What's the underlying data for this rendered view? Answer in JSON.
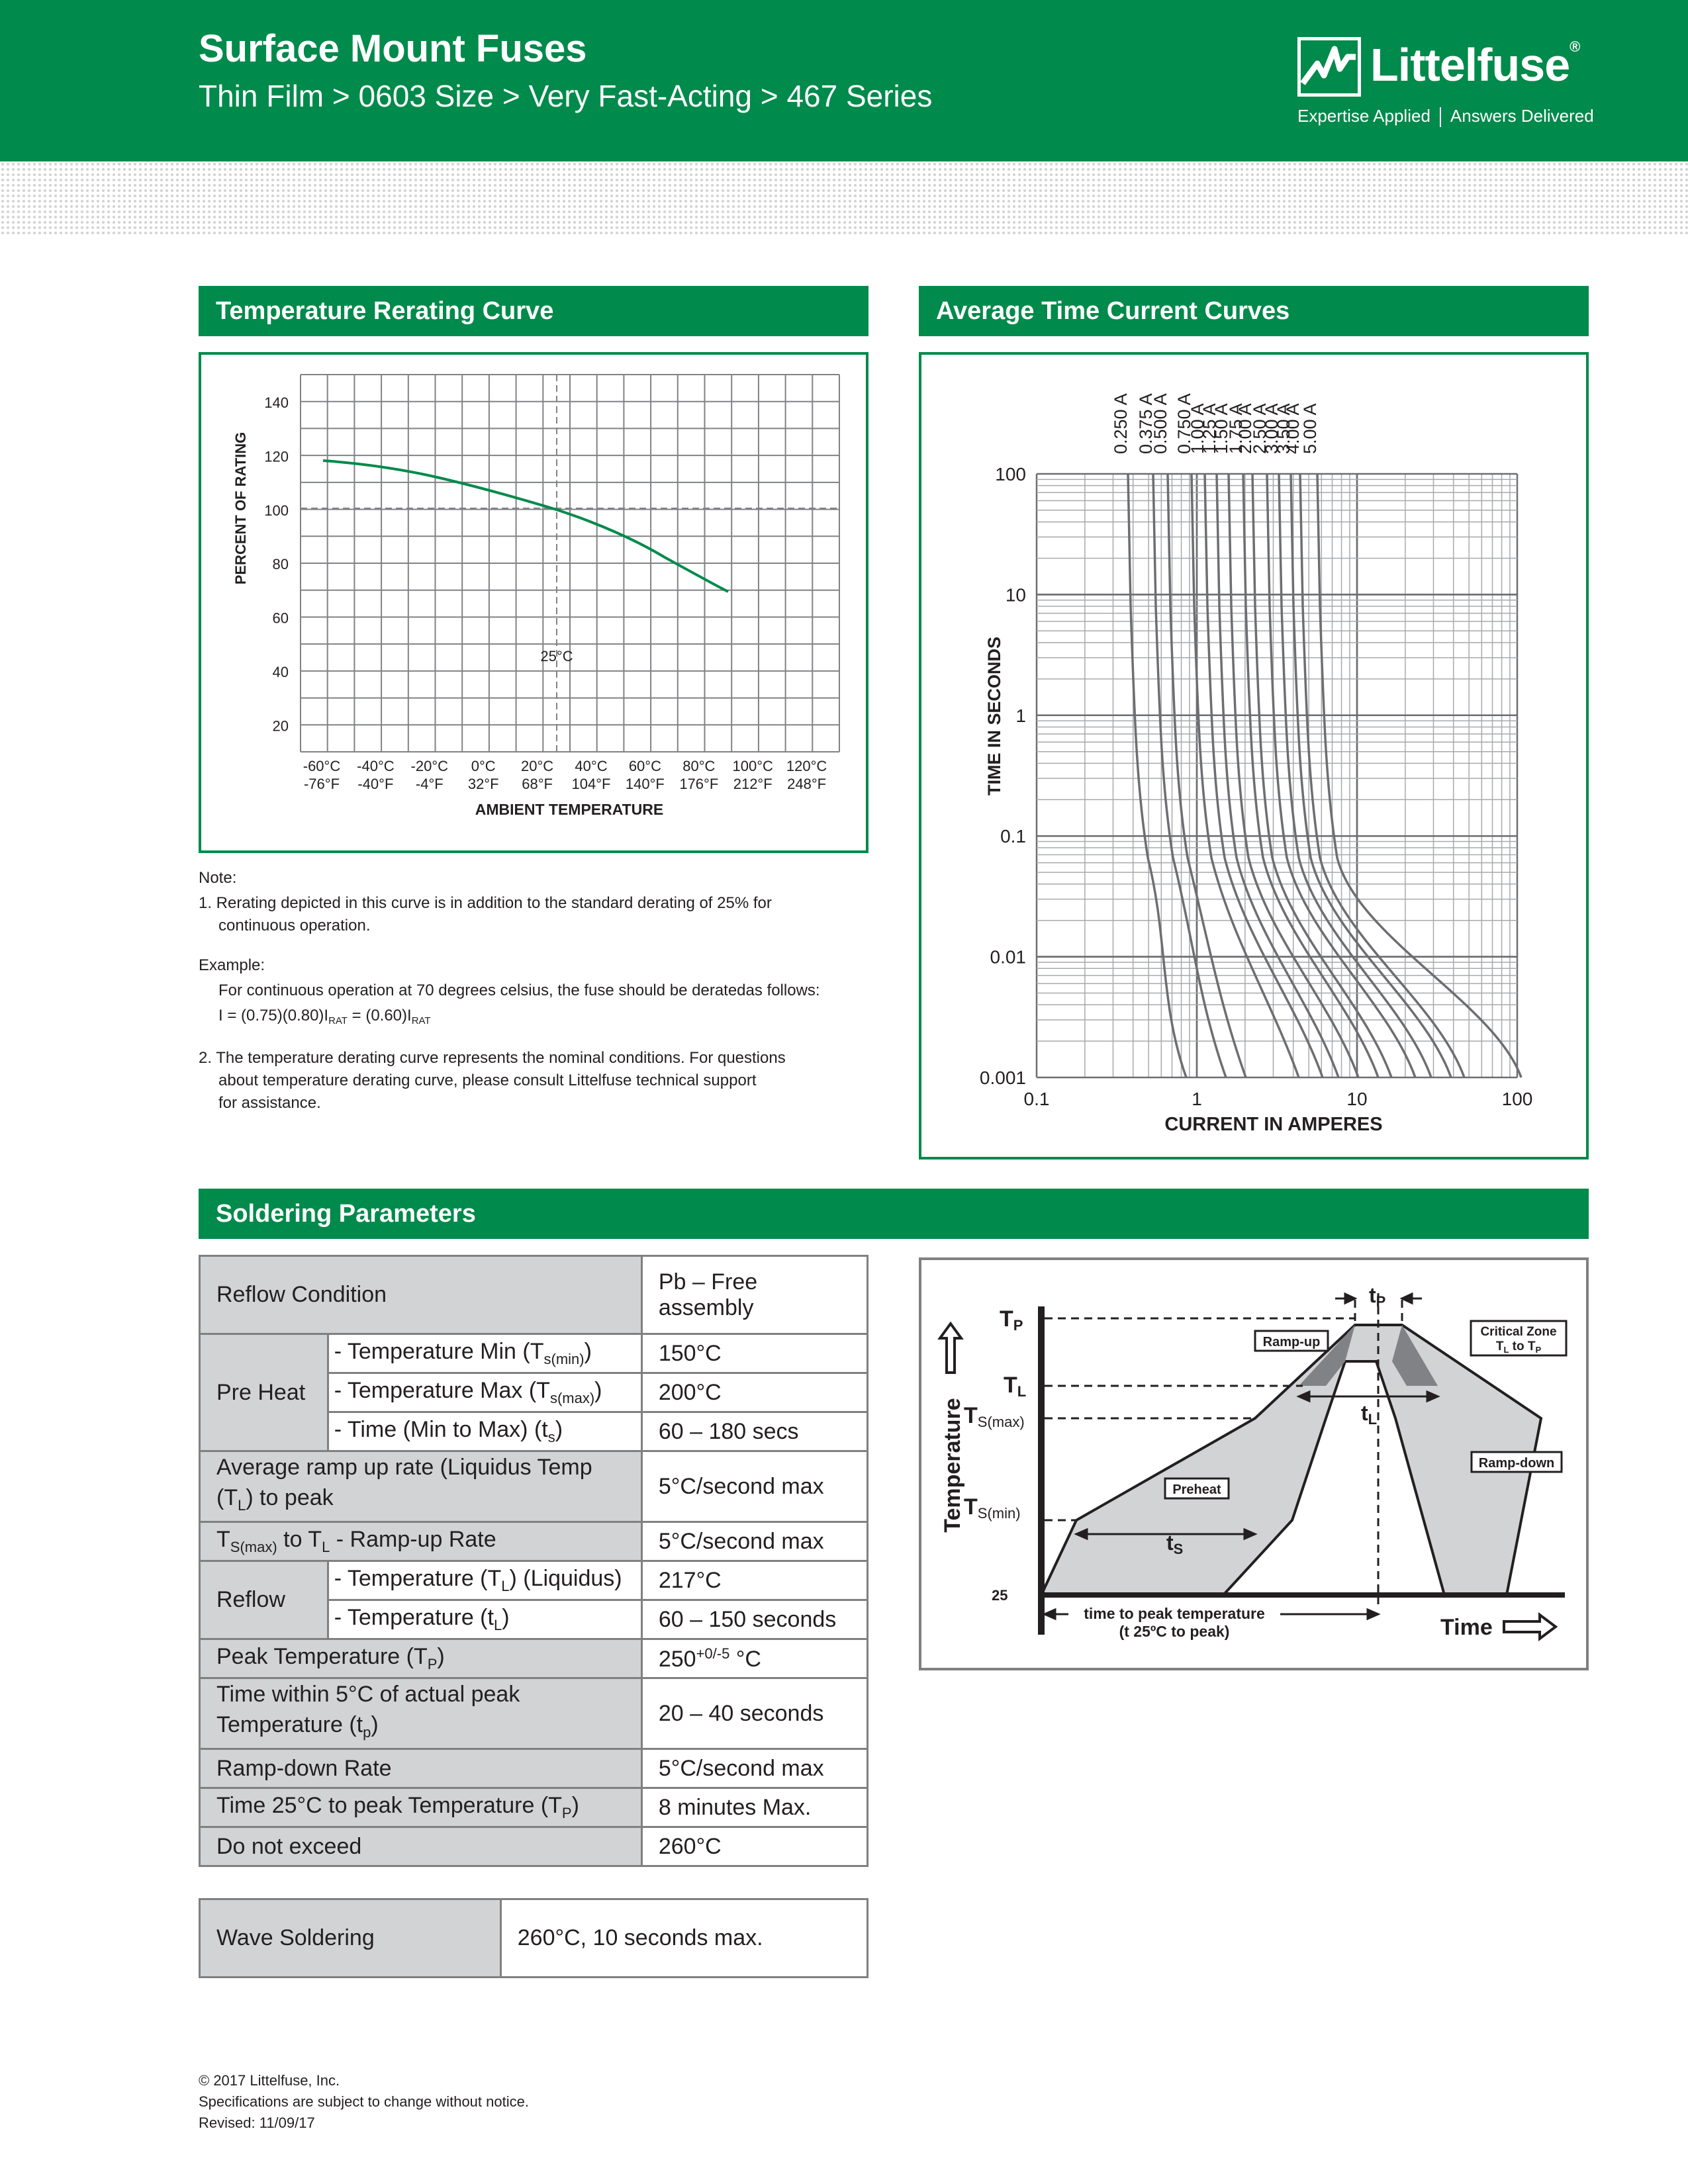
{
  "header": {
    "title": "Surface Mount Fuses",
    "subtitle": "Thin Film > 0603 Size > Very Fast-Acting > 467 Series",
    "logo_name": "Littelfuse",
    "logo_reg": "®",
    "tagline_left": "Expertise Applied",
    "tagline_right": "Answers Delivered",
    "brand_color": "#008a4b"
  },
  "rerating": {
    "section_title": "Temperature Rerating Curve",
    "ylabel": "PERCENT OF RATING",
    "xlabel": "AMBIENT TEMPERATURE",
    "marker_label": "25°C",
    "y_ticks": [
      "140",
      "120",
      "100",
      "80",
      "60",
      "40",
      "20"
    ],
    "x_ticks_c": [
      "-60°C",
      "-40°C",
      "-20°C",
      "0°C",
      "20°C",
      "40°C",
      "60°C",
      "80°C",
      "100°C",
      "120°C"
    ],
    "x_ticks_f": [
      "-76°F",
      "-40°F",
      "-4°F",
      "32°F",
      "68°F",
      "104°F",
      "140°F",
      "176°F",
      "212°F",
      "248°F"
    ]
  },
  "notes": {
    "note_label": "Note:",
    "note1_line1": "1. Rerating depicted in this curve is in addition to the standard derating of 25% for",
    "note1_line2": "continuous operation.",
    "example_label": "Example:",
    "example_text": "For continuous operation at 70 degrees celsius, the fuse should be deratedas follows:",
    "formula_a": "I = (0.75)(0.80)I",
    "formula_sub1": "RAT",
    "formula_b": " = (0.60)I",
    "formula_sub2": "RAT",
    "note2_line1": "2. The temperature derating curve represents the nominal conditions. For questions",
    "note2_line2": "about temperature derating curve, please consult Littelfuse technical support",
    "note2_line3": "for assistance."
  },
  "time_current": {
    "section_title": "Average Time Current Curves",
    "ylabel": "TIME IN SECONDS",
    "xlabel": "CURRENT IN AMPERES",
    "y_ticks": [
      "100",
      "10",
      "1",
      "0.1",
      "0.01",
      "0.001"
    ],
    "x_ticks": [
      "0.1",
      "1",
      "10",
      "100"
    ],
    "ratings": [
      "0.250 A",
      "0.375 A",
      "0.500 A",
      "0.750 A",
      "1.00 A",
      "1.25 A",
      "1.50 A",
      "1.75 A",
      "2.00 A",
      "2.50 A",
      "3.00 A",
      "3.50 A",
      "4.00 A",
      "5.00 A"
    ]
  },
  "soldering": {
    "section_title": "Soldering Parameters",
    "reflow_condition": "Reflow Condition",
    "pb_free": "Pb – Free assembly",
    "pre_heat": "Pre Heat",
    "temp_min_a": "- Temperature Min (T",
    "temp_min_sub": "s(min)",
    "temp_min_val": "150°C",
    "temp_max_a": "- Temperature Max (T",
    "temp_max_sub": "s(max)",
    "temp_max_val": "200°C",
    "time_a": "- Time (Min to Max) (t",
    "time_sub": "s",
    "time_val": "60 – 180 secs",
    "ramp_line1": "Average ramp up rate (Liquidus Temp",
    "ramp_line2_a": "(T",
    "ramp_line2_sub": "L",
    "ramp_line2_b": ") to peak",
    "ramp_val": "5°C/second max",
    "tsmax_a": "T",
    "tsmax_sub": "S(max)",
    "tsmax_b": " to T",
    "tsmax_sub2": "L",
    "tsmax_c": " - Ramp-up Rate",
    "tsmax_val": "5°C/second max",
    "reflow": "Reflow",
    "tl_a": "- Temperature (T",
    "tl_sub": "L",
    "tl_b": ") (Liquidus)",
    "tl_val": "217°C",
    "tt_a": "- Temperature (t",
    "tt_sub": "L",
    "tt_val": "60 – 150 seconds",
    "peak_a": "Peak Temperature (T",
    "peak_sub": "P",
    "peak_val_a": "250",
    "peak_val_sup": "+0/-5",
    "peak_val_b": " °C",
    "within_line1": "Time within 5°C of actual peak",
    "within_line2_a": "Temperature (t",
    "within_line2_sub": "p",
    "within_val": "20 – 40 seconds",
    "rampdown": "Ramp-down Rate",
    "rampdown_val": "5°C/second max",
    "time25_a": "Time 25°C to peak Temperature (T",
    "time25_sub": "P",
    "time25_val": "8 minutes Max.",
    "donot": "Do not exceed",
    "donot_val": "260°C",
    "wave": "Wave Soldering",
    "wave_val": "260°C, 10 seconds max."
  },
  "profile": {
    "tp": "T",
    "tp_sub": "P",
    "tl": "T",
    "tl_sub": "L",
    "tsmax": "T",
    "tsmax_sub": "S(max)",
    "tsmin": "T",
    "tsmin_sub": "S(min)",
    "t25": "25",
    "yaxis": "Temperature",
    "xaxis": "Time",
    "ramp_up": "Ramp-up",
    "ramp_down": "Ramp-down",
    "preheat": "Preheat",
    "critical1": "Critical Zone",
    "critical2": "T",
    "critical2_sub1": "L",
    "critical2_mid": " to T",
    "critical2_sub2": "P",
    "tp_small": "t",
    "tp_small_sub": "P",
    "tl_small": "t",
    "tl_small_sub": "L",
    "ts_small": "t",
    "ts_small_sub": "S",
    "peak_line1": "time to peak temperature",
    "peak_line2": "(t 25ºC to peak)"
  },
  "footer": {
    "copyright": "© 2017 Littelfuse, Inc.",
    "notice": "Specifications are subject to change without notice.",
    "revised": "Revised: 11/09/17"
  }
}
